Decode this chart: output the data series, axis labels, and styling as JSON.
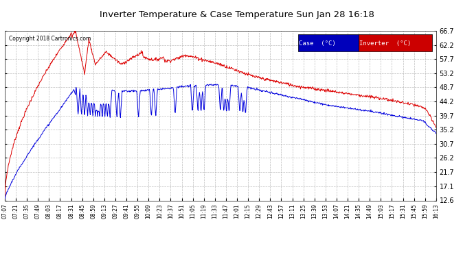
{
  "title": "Inverter Temperature & Case Temperature Sun Jan 28 16:18",
  "copyright": "Copyright 2018 Cartronics.com",
  "bg_color": "#ffffff",
  "plot_bg_color": "#ffffff",
  "grid_color": "#aaaaaa",
  "case_color": "#0000dd",
  "inverter_color": "#dd0000",
  "ylim": [
    12.6,
    66.7
  ],
  "yticks": [
    12.6,
    17.1,
    21.7,
    26.2,
    30.7,
    35.2,
    39.7,
    44.2,
    48.7,
    53.2,
    57.7,
    62.2,
    66.7
  ],
  "legend_case_label": "Case  (°C)",
  "legend_inverter_label": "Inverter  (°C)",
  "xtick_labels": [
    "07:07",
    "07:21",
    "07:35",
    "07:49",
    "08:03",
    "08:17",
    "08:31",
    "08:45",
    "08:59",
    "09:13",
    "09:27",
    "09:41",
    "09:55",
    "10:09",
    "10:23",
    "10:37",
    "10:51",
    "11:05",
    "11:19",
    "11:33",
    "11:47",
    "12:01",
    "12:15",
    "12:29",
    "12:43",
    "12:57",
    "13:11",
    "13:25",
    "13:39",
    "13:53",
    "14:07",
    "14:21",
    "14:35",
    "14:49",
    "15:03",
    "15:17",
    "15:31",
    "15:45",
    "15:59",
    "16:13"
  ]
}
